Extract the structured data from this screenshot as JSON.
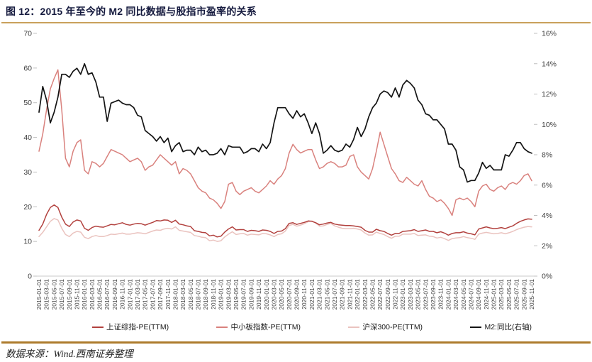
{
  "title": "图 12：2015 年至今的 M2 同比数据与股指市盈率的关系",
  "source_note": "数据来源：Wind.西南证券整理",
  "accent_rule_color": "#C9A15C",
  "footer_rule_color": "#AD7B2C",
  "chart_data": {
    "type": "line",
    "frequency": "monthly",
    "x_start": "2015-01-01",
    "x_end": "2025-11-01",
    "grid": false,
    "legend_position": "bottom",
    "left_axis": {
      "min": 0,
      "max": 70,
      "tick_labels": [
        "0",
        "10",
        "20",
        "30",
        "40",
        "50",
        "60",
        "70"
      ]
    },
    "right_axis": {
      "min": 0,
      "max": 16,
      "tick_labels": [
        "0%",
        "2%",
        "4%",
        "6%",
        "8%",
        "10%",
        "12%",
        "14%",
        "16%"
      ]
    },
    "x_tick_labels": [
      "2015-01-01",
      "2015-03-01",
      "2015-05-01",
      "2015-07-01",
      "2015-09-01",
      "2015-11-01",
      "2016-01-01",
      "2016-03-01",
      "2016-05-01",
      "2016-07-01",
      "2016-09-01",
      "2016-11-01",
      "2017-01-01",
      "2017-03-01",
      "2017-05-01",
      "2017-07-01",
      "2017-09-01",
      "2017-11-01",
      "2018-01-01",
      "2018-03-01",
      "2018-05-01",
      "2018-07-01",
      "2018-09-01",
      "2018-11-01",
      "2019-01-01",
      "2019-03-01",
      "2019-05-01",
      "2019-07-01",
      "2019-09-01",
      "2019-11-01",
      "2020-01-01",
      "2020-03-01",
      "2020-05-01",
      "2020-07-01",
      "2020-09-01",
      "2020-11-01",
      "2021-01-01",
      "2021-03-01",
      "2021-05-01",
      "2021-07-01",
      "2021-09-01",
      "2021-11-01",
      "2022-01-01",
      "2022-03-01",
      "2022-05-01",
      "2022-07-01",
      "2022-09-01",
      "2022-11-01",
      "2023-01-01",
      "2023-03-01",
      "2023-05-01",
      "2023-07-01",
      "2023-09-01",
      "2023-11-01",
      "2024-01-01",
      "2024-03-01",
      "2024-05-01",
      "2024-07-01",
      "2024-09-01",
      "2024-11-01",
      "2025-01-01",
      "2025-03-01",
      "2025-05-01",
      "2025-07-01",
      "2025-09-01",
      "2025-11-01"
    ],
    "series": [
      {
        "name": "上证综指-PE(TTM)",
        "axis": "left",
        "color": "#B2413E",
        "values": [
          13.2,
          15.0,
          17.8,
          19.8,
          20.5,
          19.8,
          17.0,
          15.0,
          14.3,
          15.6,
          16.2,
          15.9,
          13.8,
          13.2,
          14.0,
          14.4,
          14.2,
          14.1,
          14.5,
          14.9,
          14.8,
          15.1,
          15.4,
          14.9,
          14.7,
          15.0,
          15.2,
          15.1,
          14.7,
          15.1,
          15.5,
          16.0,
          15.9,
          16.2,
          16.1,
          15.5,
          16.1,
          15.0,
          14.8,
          14.5,
          14.3,
          13.1,
          12.9,
          12.6,
          12.5,
          11.6,
          11.8,
          11.3,
          11.5,
          12.7,
          13.6,
          14.2,
          13.3,
          13.4,
          13.4,
          12.9,
          13.2,
          13.1,
          12.9,
          13.3,
          13.2,
          12.9,
          12.3,
          12.9,
          13.0,
          13.7,
          15.2,
          15.4,
          14.9,
          15.2,
          15.5,
          15.9,
          15.8,
          15.4,
          14.8,
          15.0,
          15.3,
          15.5,
          15.0,
          14.8,
          14.7,
          14.6,
          14.6,
          14.5,
          14.3,
          14.1,
          13.2,
          12.7,
          12.7,
          13.5,
          13.1,
          12.9,
          12.3,
          11.8,
          12.3,
          12.3,
          12.9,
          13.0,
          13.1,
          13.4,
          12.9,
          13.1,
          13.3,
          12.9,
          12.9,
          12.5,
          12.8,
          12.4,
          11.8,
          12.3,
          12.5,
          12.5,
          12.8,
          12.4,
          12.2,
          11.9,
          13.6,
          13.9,
          14.2,
          13.9,
          13.7,
          13.8,
          14.0,
          13.7,
          14.1,
          14.5,
          15.2,
          15.8,
          16.2,
          16.5,
          16.4
        ]
      },
      {
        "name": "中小板指数-PE(TTM)",
        "axis": "left",
        "color": "#D9817D",
        "values": [
          36.0,
          41.0,
          48.0,
          54.0,
          57.0,
          59.5,
          48.0,
          34.0,
          31.5,
          36.0,
          38.5,
          39.3,
          30.5,
          29.5,
          33.0,
          32.5,
          31.5,
          32.5,
          34.5,
          36.5,
          36.0,
          35.5,
          35.0,
          34.0,
          33.0,
          33.5,
          34.0,
          33.0,
          30.5,
          31.5,
          32.0,
          33.5,
          35.0,
          34.0,
          33.0,
          32.0,
          33.0,
          29.5,
          31.0,
          30.5,
          29.5,
          27.5,
          25.5,
          24.5,
          24.0,
          22.5,
          22.0,
          21.0,
          19.5,
          21.5,
          26.5,
          27.0,
          24.5,
          23.5,
          24.5,
          25.0,
          25.5,
          24.5,
          24.0,
          25.0,
          26.0,
          27.5,
          26.5,
          28.0,
          29.0,
          31.0,
          35.5,
          38.0,
          36.5,
          35.5,
          36.0,
          36.5,
          36.5,
          33.5,
          31.0,
          31.5,
          32.5,
          33.0,
          32.5,
          31.5,
          31.5,
          32.0,
          34.5,
          35.0,
          31.5,
          30.0,
          29.0,
          28.0,
          31.0,
          36.0,
          41.5,
          38.0,
          34.5,
          31.0,
          29.5,
          27.5,
          27.0,
          28.5,
          27.5,
          26.5,
          26.0,
          27.5,
          25.0,
          23.0,
          22.5,
          21.5,
          22.0,
          21.0,
          19.5,
          17.5,
          22.0,
          22.5,
          22.0,
          22.5,
          21.5,
          20.0,
          24.5,
          26.0,
          26.5,
          25.0,
          24.5,
          25.5,
          26.0,
          25.0,
          26.5,
          27.0,
          26.5,
          27.5,
          29.0,
          29.5,
          27.5
        ]
      },
      {
        "name": "沪深300-PE(TTM)",
        "axis": "left",
        "color": "#EAC3BF",
        "values": [
          11.4,
          12.6,
          14.2,
          15.8,
          16.6,
          16.2,
          13.8,
          12.0,
          11.4,
          12.4,
          12.9,
          12.7,
          11.2,
          10.8,
          11.4,
          11.7,
          11.4,
          11.4,
          11.7,
          12.1,
          12.0,
          12.2,
          12.4,
          12.1,
          12.1,
          12.3,
          12.5,
          12.4,
          12.2,
          12.6,
          13.0,
          13.3,
          13.2,
          13.6,
          13.8,
          13.6,
          14.2,
          13.2,
          13.0,
          12.8,
          12.6,
          11.7,
          11.5,
          11.2,
          11.1,
          10.2,
          10.4,
          10.0,
          10.2,
          11.3,
          12.1,
          12.8,
          12.0,
          12.2,
          12.3,
          11.8,
          12.1,
          12.0,
          11.9,
          12.3,
          12.2,
          11.9,
          11.4,
          12.0,
          12.2,
          13.0,
          14.6,
          14.9,
          14.4,
          14.7,
          15.1,
          15.7,
          15.9,
          15.3,
          14.4,
          14.5,
          14.9,
          15.2,
          14.5,
          14.1,
          13.8,
          13.7,
          13.7,
          13.8,
          13.6,
          13.3,
          12.4,
          11.8,
          11.9,
          12.7,
          12.3,
          12.0,
          11.4,
          10.9,
          11.5,
          11.5,
          12.1,
          12.1,
          12.1,
          12.3,
          11.7,
          11.8,
          11.9,
          11.5,
          11.4,
          11.0,
          11.2,
          10.8,
          10.3,
          10.8,
          11.0,
          11.1,
          11.4,
          11.1,
          10.9,
          10.6,
          12.1,
          12.4,
          12.6,
          12.4,
          12.2,
          12.3,
          12.5,
          12.2,
          12.5,
          12.9,
          13.4,
          13.8,
          14.1,
          14.3,
          14.2
        ]
      },
      {
        "name": "M2:同比(右轴)",
        "axis": "right",
        "color": "#141414",
        "values": [
          10.8,
          12.5,
          11.6,
          10.1,
          10.8,
          11.8,
          13.3,
          13.3,
          13.1,
          13.5,
          13.7,
          13.3,
          14.0,
          13.3,
          13.4,
          12.8,
          11.8,
          11.8,
          10.2,
          11.4,
          11.5,
          11.6,
          11.4,
          11.3,
          11.3,
          11.1,
          10.6,
          10.5,
          9.6,
          9.4,
          9.2,
          8.9,
          9.2,
          8.8,
          9.1,
          8.2,
          8.6,
          8.8,
          8.2,
          8.3,
          8.3,
          8.0,
          8.5,
          8.2,
          8.3,
          8.0,
          8.0,
          8.1,
          8.4,
          8.0,
          8.6,
          8.5,
          8.5,
          8.5,
          8.1,
          8.2,
          8.4,
          8.4,
          8.2,
          8.7,
          8.4,
          8.8,
          10.1,
          11.1,
          11.1,
          11.1,
          10.7,
          10.4,
          10.9,
          10.5,
          10.7,
          10.1,
          9.4,
          10.1,
          9.4,
          8.1,
          8.3,
          8.6,
          8.3,
          8.2,
          8.3,
          8.7,
          8.5,
          9.0,
          9.8,
          9.2,
          9.7,
          10.5,
          11.1,
          11.4,
          12.0,
          12.2,
          12.1,
          11.8,
          12.4,
          11.8,
          12.6,
          12.9,
          12.7,
          12.4,
          11.6,
          11.3,
          10.7,
          10.6,
          10.3,
          10.3,
          10.0,
          9.7,
          8.7,
          8.7,
          8.3,
          7.2,
          7.0,
          6.2,
          6.3,
          6.3,
          6.8,
          7.5,
          7.1,
          7.3,
          7.0,
          7.0,
          7.0,
          8.0,
          7.9,
          8.3,
          8.8,
          8.8,
          8.4,
          8.2,
          8.1
        ]
      }
    ]
  }
}
